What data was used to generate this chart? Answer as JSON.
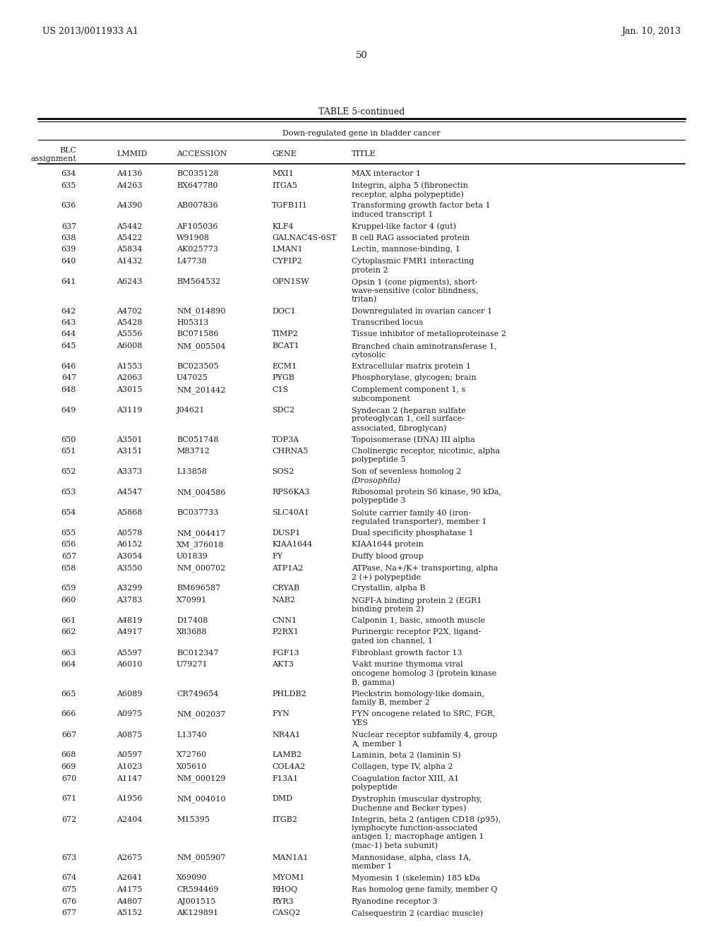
{
  "patent_left": "US 2013/0011933 A1",
  "patent_right": "Jan. 10, 2013",
  "page_number": "50",
  "table_title": "TABLE 5-continued",
  "table_subtitle": "Down-regulated gene in bladder cancer",
  "background_color": "#ffffff",
  "text_color": "#1a1a1a",
  "rows": [
    [
      "634",
      "A4136",
      "BC035128",
      "MXI1",
      "MAX interactor 1",
      1
    ],
    [
      "635",
      "A4263",
      "BX647780",
      "ITGA5",
      "Integrin, alpha 5 (fibronectin\nreceptor, alpha polypeptide)",
      2
    ],
    [
      "636",
      "A4390",
      "AB007836",
      "TGFB1I1",
      "Transforming growth factor beta 1\ninduced transcript 1",
      2
    ],
    [
      "637",
      "A5442",
      "AF105036",
      "KLF4",
      "Kruppel-like factor 4 (gut)",
      1
    ],
    [
      "638",
      "A5422",
      "W91908",
      "GALNAC4S-6ST",
      "B cell RAG associated protein",
      1
    ],
    [
      "639",
      "A5834",
      "AK025773",
      "LMAN1",
      "Lectin, mannose-binding, 1",
      1
    ],
    [
      "640",
      "A1432",
      "L47738",
      "CYFIP2",
      "Cytoplasmic FMR1 interacting\nprotein 2",
      2
    ],
    [
      "641",
      "A6243",
      "BM564532",
      "OPN1SW",
      "Opsin 1 (cone pigments), short-\nwave-sensitive (color blindness,\ntritan)",
      3
    ],
    [
      "642",
      "A4702",
      "NM_014890",
      "DOC1",
      "Downregulated in ovarian cancer 1",
      1
    ],
    [
      "643",
      "A5428",
      "H05313",
      "",
      "Transcribed locus",
      1
    ],
    [
      "644",
      "A5556",
      "BC071586",
      "TIMP2",
      "Tissue inhibitor of metalloproteinase 2",
      1
    ],
    [
      "645",
      "A6008",
      "NM_005504",
      "BCAT1",
      "Branched chain aminotransferase 1,\ncytosolic",
      2
    ],
    [
      "646",
      "A1553",
      "BC023505",
      "ECM1",
      "Extracellular matrix protein 1",
      1
    ],
    [
      "647",
      "A2063",
      "U47025",
      "PYGB",
      "Phosphorylase, glycogen; brain",
      1
    ],
    [
      "648",
      "A3015",
      "NM_201442",
      "C1S",
      "Complement component 1, s\nsubcomponent",
      2
    ],
    [
      "649",
      "A3119",
      "J04621",
      "SDC2",
      "Syndecan 2 (heparan sulfate\nproteoglycan 1, cell surface-\nassociated, fibroglycan)",
      3
    ],
    [
      "650",
      "A3501",
      "BC051748",
      "TOP3A",
      "Topoisomerase (DNA) III alpha",
      1
    ],
    [
      "651",
      "A3151",
      "M83712",
      "CHRNA5",
      "Cholinergic receptor, nicotinic, alpha\npolypeptide 5",
      2
    ],
    [
      "652",
      "A3373",
      "L13858",
      "SOS2",
      "Son of sevenless homolog 2\n(Drosophila)",
      2
    ],
    [
      "653",
      "A4547",
      "NM_004586",
      "RPS6KA3",
      "Ribosomal protein S6 kinase, 90 kDa,\npolypeptide 3",
      2
    ],
    [
      "654",
      "A5868",
      "BC037733",
      "SLC40A1",
      "Solute carrier family 40 (iron-\nregulated transporter), member 1",
      2
    ],
    [
      "655",
      "A0578",
      "NM_004417",
      "DUSP1",
      "Dual specificity phosphatase 1",
      1
    ],
    [
      "656",
      "A6152",
      "XM_376018",
      "KIAA1644",
      "KIAA1644 protein",
      1
    ],
    [
      "657",
      "A3054",
      "U01839",
      "FY",
      "Duffy blood group",
      1
    ],
    [
      "658",
      "A3550",
      "NM_000702",
      "ATP1A2",
      "ATPase, Na+/K+ transporting, alpha\n2 (+) polypeptide",
      2
    ],
    [
      "659",
      "A3299",
      "BM696587",
      "CRYAB",
      "Crystallin, alpha B",
      1
    ],
    [
      "660",
      "A3783",
      "X70991",
      "NAB2",
      "NGFI-A binding protein 2 (EGR1\nbinding protein 2)",
      2
    ],
    [
      "661",
      "A4819",
      "D17408",
      "CNN1",
      "Calponin 1, basic, smooth muscle",
      1
    ],
    [
      "662",
      "A4917",
      "X83688",
      "P2RX1",
      "Purinergic receptor P2X, ligand-\ngated ion channel, 1",
      2
    ],
    [
      "663",
      "A5597",
      "BC012347",
      "FGF13",
      "Fibroblast growth factor 13",
      1
    ],
    [
      "664",
      "A6010",
      "U79271",
      "AKT3",
      "V-akt murine thymoma viral\noncogene homolog 3 (protein kinase\nB, gamma)",
      3
    ],
    [
      "665",
      "A6089",
      "CR749654",
      "PHLDB2",
      "Pleckstrin homology-like domain,\nfamily B, member 2",
      2
    ],
    [
      "666",
      "A0975",
      "NM_002037",
      "FYN",
      "FYN oncogene related to SRC, FGR,\nYES",
      2
    ],
    [
      "667",
      "A0875",
      "L13740",
      "NR4A1",
      "Nuclear receptor subfamily 4, group\nA, member 1",
      2
    ],
    [
      "668",
      "A0597",
      "X72760",
      "LAMB2",
      "Laminin, beta 2 (laminin S)",
      1
    ],
    [
      "669",
      "A1023",
      "X05610",
      "COL4A2",
      "Collagen, type IV, alpha 2",
      1
    ],
    [
      "670",
      "A1147",
      "NM_000129",
      "F13A1",
      "Coagulation factor XIII, A1\npolypeptide",
      2
    ],
    [
      "671",
      "A1956",
      "NM_004010",
      "DMD",
      "Dystrophin (muscular dystrophy,\nDuchenne and Becker types)",
      2
    ],
    [
      "672",
      "A2404",
      "M15395",
      "ITGB2",
      "Integrin, beta 2 (antigen CD18 (p95),\nlymphocyte function-associated\nantigen 1; macrophage antigen 1\n(mac-1) beta subunit)",
      4
    ],
    [
      "673",
      "A2675",
      "NM_005907",
      "MAN1A1",
      "Mannosidase, alpha, class 1A,\nmember 1",
      2
    ],
    [
      "674",
      "A2641",
      "X69090",
      "MYOM1",
      "Myomesin 1 (skelemin) 185 kDa",
      1
    ],
    [
      "675",
      "A4175",
      "CR594469",
      "RHOQ",
      "Ras homolog gene family, member Q",
      1
    ],
    [
      "676",
      "A4807",
      "AJ001515",
      "RYR3",
      "Ryanodine receptor 3",
      1
    ],
    [
      "677",
      "A5152",
      "AK129891",
      "CASQ2",
      "Calsequestrin 2 (cardiac muscle)",
      1
    ]
  ]
}
